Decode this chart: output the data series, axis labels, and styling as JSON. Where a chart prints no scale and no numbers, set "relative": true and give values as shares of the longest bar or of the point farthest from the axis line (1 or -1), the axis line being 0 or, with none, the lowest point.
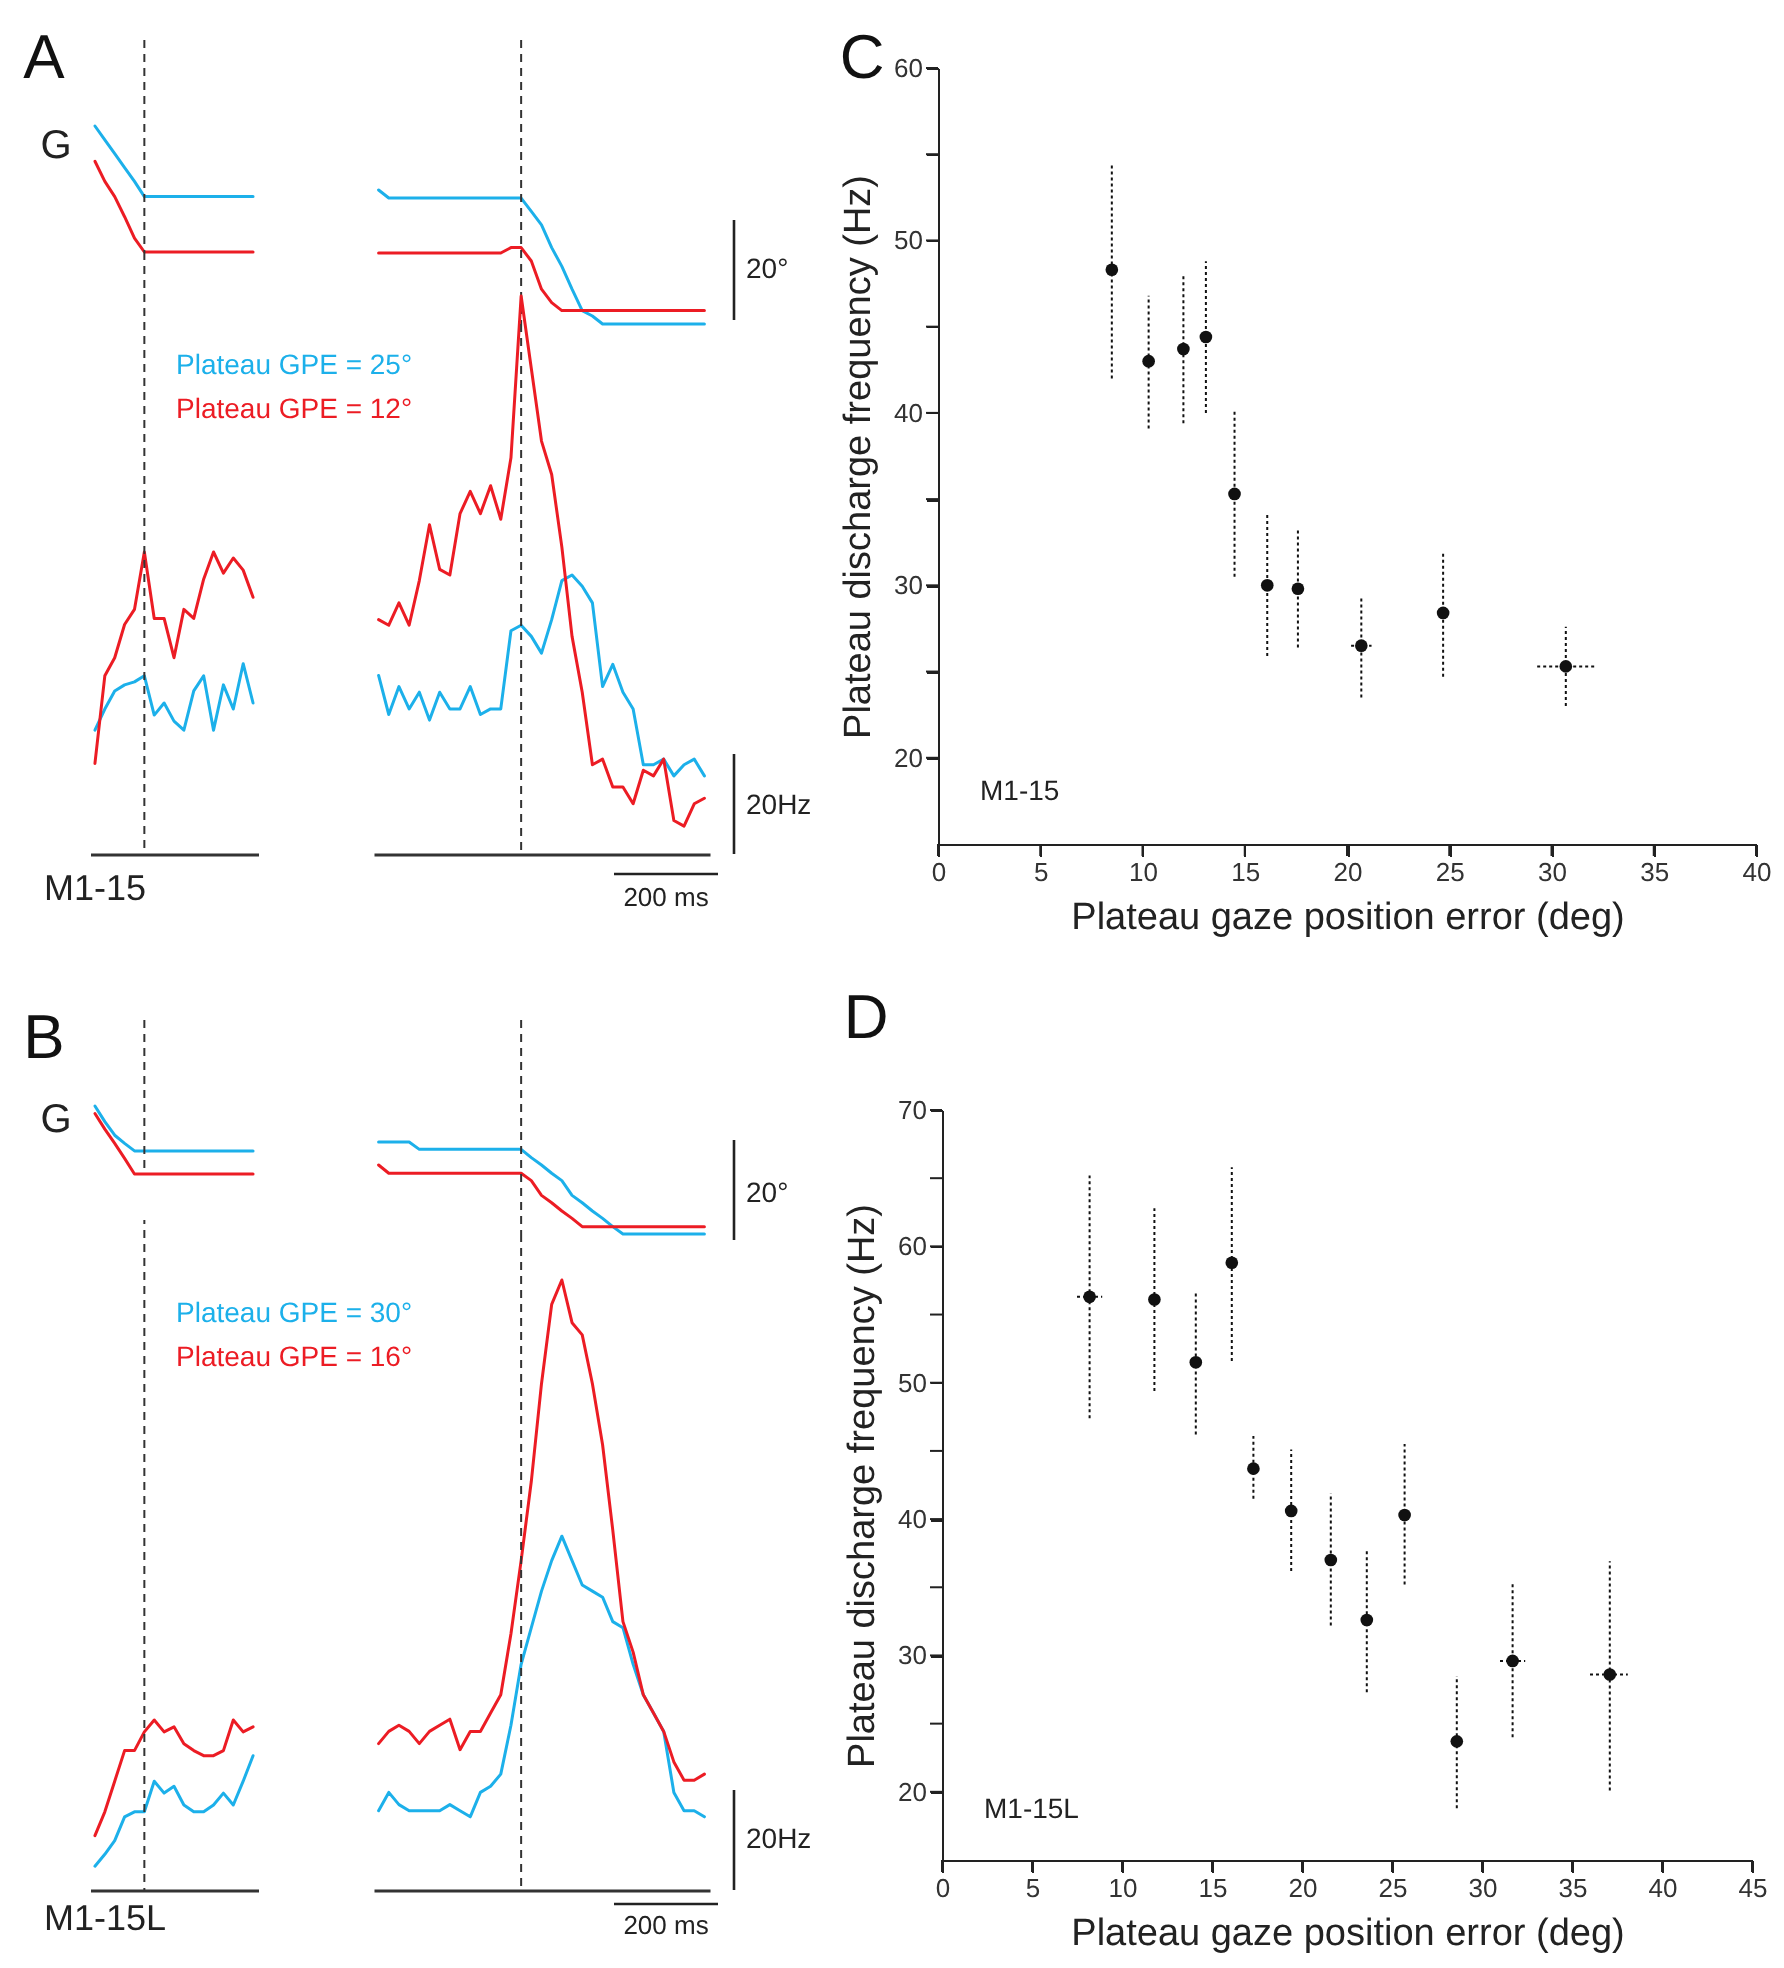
{
  "chart_data": [
    {
      "type": "line",
      "title": "A",
      "relative": true,
      "line_style": "solid",
      "annotations": [
        "G"
      ],
      "categories": [
        null,
        null,
        null,
        null,
        null,
        null,
        null,
        null,
        null,
        null,
        null,
        null,
        null,
        null,
        null,
        null,
        null
      ],
      "series": [
        {
          "color": "#1cb0ea",
          "values": [
            1.0,
            0.89,
            0.78,
            0.67,
            0.56,
            0.44,
            0.44,
            0.44,
            0.44,
            0.44,
            0.44,
            0.44,
            0.44,
            0.44,
            0.44,
            0.44,
            0.44
          ]
        },
        {
          "color": "#ec1c24",
          "values": [
            0.72,
            0.56,
            0.44,
            0.28,
            0.11,
            0,
            0,
            0,
            0,
            0,
            0,
            0,
            0,
            0,
            0,
            0,
            0
          ]
        }
      ]
    },
    {
      "type": "line",
      "relative": true,
      "line_style": "solid",
      "annotations": [
        "20°"
      ],
      "categories": [
        null,
        null,
        null,
        null,
        null,
        null,
        null,
        null,
        null,
        null,
        null,
        null,
        null,
        null,
        null,
        null,
        null,
        null,
        null,
        null,
        null,
        null,
        null,
        null,
        null,
        null,
        null,
        null,
        null,
        null,
        null,
        null,
        null
      ],
      "series": [
        {
          "color": "#1cb0ea",
          "values": [
            1.0,
            0.94,
            0.94,
            0.94,
            0.94,
            0.94,
            0.94,
            0.94,
            0.94,
            0.94,
            0.94,
            0.94,
            0.94,
            0.94,
            0.94,
            0.84,
            0.74,
            0.57,
            0.43,
            0.26,
            0.1,
            0.06,
            0,
            0,
            0,
            0,
            0,
            0,
            0,
            0,
            0,
            0,
            0
          ]
        },
        {
          "color": "#ec1c24",
          "values": [
            0.53,
            0.53,
            0.53,
            0.53,
            0.53,
            0.53,
            0.53,
            0.53,
            0.53,
            0.53,
            0.53,
            0.53,
            0.53,
            0.57,
            0.57,
            0.47,
            0.26,
            0.16,
            0.1,
            0.1,
            0.1,
            0.1,
            0.1,
            0.1,
            0.1,
            0.1,
            0.1,
            0.1,
            0.1,
            0.1,
            0.1,
            0.1,
            0.1
          ]
        }
      ]
    },
    {
      "type": "line",
      "relative": true,
      "line_style": "solid",
      "annotations": [
        "M1-15"
      ],
      "categories": [
        null,
        null,
        null,
        null,
        null,
        null,
        null,
        null,
        null,
        null,
        null,
        null,
        null,
        null,
        null,
        null,
        null
      ],
      "series": [
        {
          "name": "Plateau GPE = 25°",
          "color": "#1cb0ea",
          "values": [
            0.41,
            0.48,
            0.54,
            0.56,
            0.57,
            0.59,
            0.46,
            0.5,
            0.44,
            0.41,
            0.54,
            0.59,
            0.41,
            0.56,
            0.48,
            0.63,
            0.5
          ]
        },
        {
          "name": "Plateau GPE = 12°",
          "color": "#ec1c24",
          "values": [
            0.3,
            0.59,
            0.65,
            0.76,
            0.81,
            1.0,
            0.78,
            0.78,
            0.65,
            0.81,
            0.78,
            0.91,
            1.0,
            0.93,
            0.98,
            0.94,
            0.85
          ]
        }
      ]
    },
    {
      "type": "line",
      "relative": true,
      "line_style": "solid",
      "annotations": [
        "20Hz",
        "200 ms"
      ],
      "categories": [
        null,
        null,
        null,
        null,
        null,
        null,
        null,
        null,
        null,
        null,
        null,
        null,
        null,
        null,
        null,
        null,
        null,
        null,
        null,
        null,
        null,
        null,
        null,
        null,
        null,
        null,
        null,
        null,
        null,
        null,
        null,
        null,
        null
      ],
      "series": [
        {
          "color": "#1cb0ea",
          "values": [
            0.32,
            0.25,
            0.3,
            0.26,
            0.29,
            0.24,
            0.29,
            0.26,
            0.26,
            0.3,
            0.25,
            0.26,
            0.26,
            0.4,
            0.41,
            0.39,
            0.36,
            0.42,
            0.49,
            0.5,
            0.48,
            0.45,
            0.3,
            0.34,
            0.29,
            0.26,
            0.16,
            0.16,
            0.17,
            0.14,
            0.16,
            0.17,
            0.14
          ]
        },
        {
          "color": "#ec1c24",
          "values": [
            0.42,
            0.41,
            0.45,
            0.41,
            0.49,
            0.59,
            0.51,
            0.5,
            0.61,
            0.65,
            0.61,
            0.66,
            0.6,
            0.71,
            1.0,
            0.87,
            0.74,
            0.68,
            0.55,
            0.39,
            0.29,
            0.16,
            0.17,
            0.12,
            0.12,
            0.09,
            0.15,
            0.14,
            0.17,
            0.06,
            0.05,
            0.09,
            0.1
          ]
        }
      ]
    },
    {
      "type": "scatter",
      "title": "C",
      "xlabel": "Plateau gaze position error (deg)",
      "ylabel": "Plateau  discharge frequency (Hz)",
      "marker": "circle",
      "annotations": [
        "M1-15"
      ],
      "xlim": [
        0,
        40
      ],
      "ylim": [
        15,
        60
      ],
      "xticks": [
        0,
        5,
        10,
        15,
        20,
        25,
        30,
        35,
        40
      ],
      "yticks": [
        20,
        {
          "value": 25,
          "label": null
        },
        30,
        {
          "value": 35,
          "label": null
        },
        40,
        {
          "value": 45,
          "label": null
        },
        50,
        {
          "value": 55,
          "label": null
        },
        60
      ],
      "x": [
        8.5,
        10.3,
        12.0,
        13.1,
        14.5,
        16.1,
        17.6,
        20.7,
        24.7,
        30.7
      ],
      "series": [
        {
          "color": "#111111",
          "values": [
            48.3,
            43.0,
            43.7,
            44.4,
            35.3,
            30.0,
            29.8,
            26.5,
            28.4,
            25.3
          ],
          "errors": [
            [
              42.0,
              54.5
            ],
            [
              39.1,
              46.8
            ],
            [
              39.4,
              48.0
            ],
            [
              40.0,
              48.8
            ],
            [
              30.5,
              40.2
            ],
            [
              25.9,
              34.1
            ],
            [
              26.4,
              33.2
            ],
            [
              23.5,
              29.4
            ],
            [
              24.7,
              32.0
            ],
            [
              23.0,
              27.6
            ]
          ],
          "xerrors": [
            null,
            null,
            null,
            null,
            null,
            null,
            null,
            [
              20.2,
              21.2
            ],
            null,
            [
              29.3,
              32.1
            ]
          ]
        }
      ]
    },
    {
      "type": "line",
      "title": "B",
      "relative": true,
      "line_style": "solid",
      "annotations": [
        "G"
      ],
      "categories": [
        null,
        null,
        null,
        null,
        null,
        null,
        null,
        null,
        null,
        null,
        null,
        null,
        null,
        null,
        null,
        null,
        null
      ],
      "series": [
        {
          "color": "#1cb0ea",
          "values": [
            1.0,
            0.77,
            0.57,
            0.45,
            0.34,
            0.34,
            0.34,
            0.34,
            0.34,
            0.34,
            0.34,
            0.34,
            0.34,
            0.34,
            0.34,
            0.34,
            0.34
          ]
        },
        {
          "color": "#ec1c24",
          "values": [
            0.89,
            0.66,
            0.45,
            0.23,
            0,
            0,
            0,
            0,
            0,
            0,
            0,
            0,
            0,
            0,
            0,
            0,
            0
          ]
        }
      ]
    },
    {
      "type": "line",
      "relative": true,
      "line_style": "solid",
      "annotations": [
        "20°"
      ],
      "categories": [
        null,
        null,
        null,
        null,
        null,
        null,
        null,
        null,
        null,
        null,
        null,
        null,
        null,
        null,
        null,
        null,
        null,
        null,
        null,
        null,
        null,
        null,
        null,
        null,
        null,
        null,
        null,
        null,
        null,
        null,
        null,
        null,
        null
      ],
      "series": [
        {
          "color": "#1cb0ea",
          "values": [
            1.0,
            1.0,
            1.0,
            1.0,
            0.92,
            0.92,
            0.92,
            0.92,
            0.92,
            0.92,
            0.92,
            0.92,
            0.92,
            0.92,
            0.92,
            0.83,
            0.75,
            0.66,
            0.58,
            0.42,
            0.34,
            0.25,
            0.17,
            0.08,
            0,
            0,
            0,
            0,
            0,
            0,
            0,
            0,
            0
          ]
        },
        {
          "color": "#ec1c24",
          "values": [
            0.75,
            0.66,
            0.66,
            0.66,
            0.66,
            0.66,
            0.66,
            0.66,
            0.66,
            0.66,
            0.66,
            0.66,
            0.66,
            0.66,
            0.66,
            0.58,
            0.42,
            0.34,
            0.25,
            0.17,
            0.08,
            0.08,
            0.08,
            0.08,
            0.08,
            0.08,
            0.08,
            0.08,
            0.08,
            0.08,
            0.08,
            0.08,
            0.08
          ]
        }
      ]
    },
    {
      "type": "line",
      "relative": true,
      "line_style": "solid",
      "annotations": [
        "M1-15L"
      ],
      "categories": [
        null,
        null,
        null,
        null,
        null,
        null,
        null,
        null,
        null,
        null,
        null,
        null,
        null,
        null,
        null,
        null,
        null
      ],
      "series": [
        {
          "name": "Plateau GPE = 30°",
          "color": "#1cb0ea",
          "values": [
            0.14,
            0.21,
            0.29,
            0.43,
            0.46,
            0.46,
            0.64,
            0.57,
            0.61,
            0.5,
            0.46,
            0.46,
            0.5,
            0.57,
            0.5,
            0.64,
            0.79
          ]
        },
        {
          "name": "Plateau GPE = 16°",
          "color": "#ec1c24",
          "values": [
            0.32,
            0.46,
            0.64,
            0.82,
            0.82,
            0.93,
            1.0,
            0.93,
            0.96,
            0.86,
            0.82,
            0.79,
            0.79,
            0.82,
            1.0,
            0.93,
            0.96
          ]
        }
      ]
    },
    {
      "type": "line",
      "relative": true,
      "line_style": "solid",
      "annotations": [
        "20Hz",
        "200 ms"
      ],
      "categories": [
        null,
        null,
        null,
        null,
        null,
        null,
        null,
        null,
        null,
        null,
        null,
        null,
        null,
        null,
        null,
        null,
        null,
        null,
        null,
        null,
        null,
        null,
        null,
        null,
        null,
        null,
        null,
        null,
        null,
        null,
        null,
        null,
        null
      ],
      "series": [
        {
          "color": "#1cb0ea",
          "values": [
            0.13,
            0.16,
            0.14,
            0.13,
            0.13,
            0.13,
            0.13,
            0.14,
            0.13,
            0.12,
            0.16,
            0.17,
            0.19,
            0.27,
            0.37,
            0.43,
            0.49,
            0.54,
            0.58,
            0.54,
            0.5,
            0.49,
            0.48,
            0.44,
            0.43,
            0.37,
            0.32,
            0.29,
            0.26,
            0.16,
            0.13,
            0.13,
            0.12
          ]
        },
        {
          "color": "#ec1c24",
          "values": [
            0.24,
            0.26,
            0.27,
            0.26,
            0.24,
            0.26,
            0.27,
            0.28,
            0.23,
            0.26,
            0.26,
            0.29,
            0.32,
            0.42,
            0.54,
            0.67,
            0.83,
            0.96,
            1.0,
            0.93,
            0.91,
            0.83,
            0.73,
            0.59,
            0.44,
            0.39,
            0.32,
            0.29,
            0.26,
            0.21,
            0.18,
            0.18,
            0.19
          ]
        }
      ]
    },
    {
      "type": "scatter",
      "title": "D",
      "xlabel": "Plateau gaze position error (deg)",
      "ylabel": "Plateau  discharge frequency (Hz)",
      "marker": "circle",
      "annotations": [
        "M1-15L"
      ],
      "xlim": [
        0,
        45
      ],
      "ylim": [
        15,
        70
      ],
      "xticks": [
        0,
        5,
        10,
        15,
        20,
        25,
        30,
        35,
        40,
        45
      ],
      "yticks": [
        20,
        {
          "value": 25,
          "label": null
        },
        30,
        {
          "value": 35,
          "label": null
        },
        40,
        {
          "value": 45,
          "label": null
        },
        50,
        {
          "value": 55,
          "label": null
        },
        60,
        {
          "value": 65,
          "label": null
        },
        70
      ],
      "x": [
        8.2,
        11.8,
        14.1,
        16.1,
        17.3,
        19.4,
        21.6,
        23.6,
        25.7,
        28.6,
        31.7,
        37.1
      ],
      "series": [
        {
          "color": "#111111",
          "values": [
            56.3,
            56.1,
            51.5,
            58.8,
            43.7,
            40.6,
            37.0,
            32.6,
            40.3,
            23.7,
            29.6,
            28.6
          ],
          "errors": [
            [
              47.4,
              65.2
            ],
            [
              49.4,
              62.8
            ],
            [
              46.2,
              56.7
            ],
            [
              51.6,
              65.8
            ],
            [
              41.5,
              46.1
            ],
            [
              36.2,
              45.1
            ],
            [
              32.2,
              41.9
            ],
            [
              27.3,
              37.8
            ],
            [
              35.2,
              45.5
            ],
            [
              18.8,
              28.5
            ],
            [
              24.0,
              35.3
            ],
            [
              20.1,
              36.9
            ]
          ],
          "xerrors": [
            [
              7.5,
              8.9
            ],
            null,
            null,
            null,
            null,
            null,
            null,
            null,
            null,
            null,
            [
              31.0,
              32.4
            ],
            [
              36.0,
              38.1
            ]
          ]
        }
      ]
    }
  ]
}
